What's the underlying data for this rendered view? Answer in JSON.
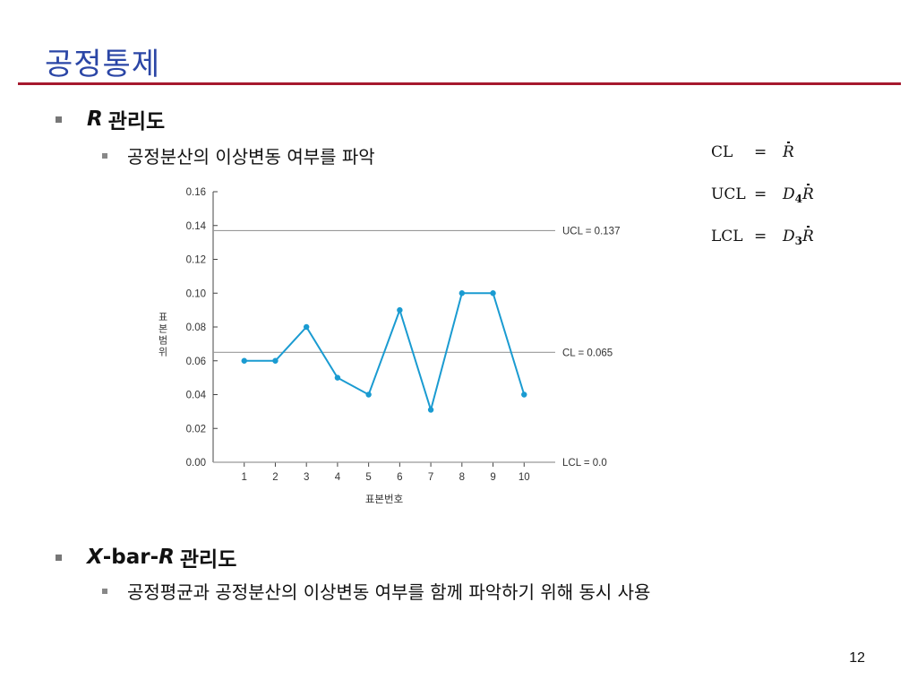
{
  "slide": {
    "title": "공정통제",
    "page_number": "12"
  },
  "bullets": {
    "r_chart": {
      "italic": "R",
      "text": "관리도"
    },
    "r_chart_sub": "공정분산의 이상변동 여부를 파악",
    "xbar_r": {
      "x": "X",
      "mid": "-bar-",
      "r": "R",
      "text": "관리도"
    },
    "xbar_r_sub": "공정평균과 공정분산의 이상변동 여부를 함께 파악하기 위해 동시 사용"
  },
  "formulas": {
    "cl": {
      "label": "CL",
      "eq": "=",
      "var": "R"
    },
    "ucl": {
      "label": "UCL",
      "eq": "=",
      "var": "D",
      "sub": "4",
      "var2": "R"
    },
    "lcl": {
      "label": "LCL",
      "eq": "=",
      "var": "D",
      "sub": "3",
      "var2": "R"
    }
  },
  "colors": {
    "title": "#2b46a6",
    "rule": "#a6192e",
    "series": "#1a9bd1",
    "control_lines": "#999999"
  },
  "chart_data": {
    "type": "line",
    "x": [
      1,
      2,
      3,
      4,
      5,
      6,
      7,
      8,
      9,
      10
    ],
    "values": [
      0.06,
      0.06,
      0.08,
      0.05,
      0.04,
      0.09,
      0.031,
      0.1,
      0.1,
      0.04
    ],
    "xlabel": "표본번호",
    "ylabel": "표본범위",
    "ylim": [
      0,
      0.16
    ],
    "xlim": [
      0,
      11
    ],
    "y_ticks": [
      "0.00",
      "0.02",
      "0.04",
      "0.06",
      "0.08",
      "0.10",
      "0.12",
      "0.14",
      "0.16"
    ],
    "x_ticks": [
      "1",
      "2",
      "3",
      "4",
      "5",
      "6",
      "7",
      "8",
      "9",
      "10"
    ],
    "control_lines": [
      {
        "label": "UCL = 0.137",
        "value": 0.137
      },
      {
        "label": "CL = 0.065",
        "value": 0.065
      },
      {
        "label": "LCL = 0.0",
        "value": 0.0
      }
    ],
    "grid": false
  }
}
